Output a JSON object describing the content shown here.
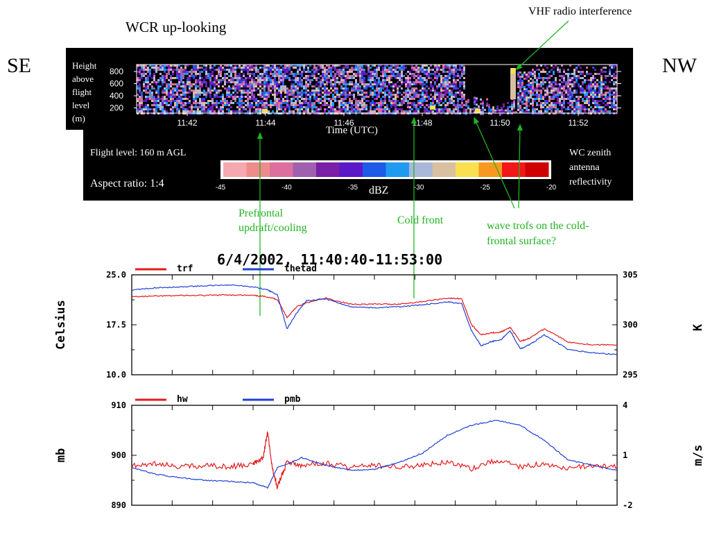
{
  "colors": {
    "trf": "#e31a1c",
    "thetad": "#1f3fd6",
    "hw": "#e31a1c",
    "pmb": "#1f3fd6",
    "annotation": "#22b322"
  },
  "radar": {
    "title": "WCR up-looking",
    "left_dir": "SE",
    "right_dir": "NW",
    "interference_label": "VHF radio interference",
    "height_label": [
      "Height",
      "above",
      "flight",
      "level",
      "(m)"
    ],
    "height_ticks": [
      "800",
      "600",
      "400",
      "200"
    ],
    "time_ticks": [
      "11:42",
      "11:44",
      "11:46",
      "11:48",
      "11:50",
      "11:52"
    ],
    "time_axis_label": "Time (UTC)",
    "flight_level": "Flight level: 160 m AGL",
    "aspect_ratio": "Aspect ratio: 1:4",
    "reflectivity_label": [
      "WC zenith",
      "antenna",
      "reflectivity"
    ],
    "colorbar_unit": "dBZ",
    "colorbar_ticks": [
      "-45",
      "-40",
      "-35",
      "-30",
      "-25",
      "-20"
    ],
    "colorbar_colors": [
      "#f6a8b0",
      "#ee8c8c",
      "#dd6e9e",
      "#a060b0",
      "#7a1fa8",
      "#5a18c8",
      "#1e5ae8",
      "#1f9af0",
      "#a8b8d8",
      "#d8c0a0",
      "#f8e050",
      "#f89820",
      "#f01818",
      "#d00000"
    ]
  },
  "annotations": {
    "prefrontal": [
      "Prefrontal",
      "updraft/cooling"
    ],
    "cold_front": "Cold front",
    "wave_trofs": [
      "wave trofs on the cold-",
      "frontal surface?"
    ]
  },
  "plot_title": "6/4/2002, 11:40:40-11:53:00",
  "chart_data": [
    {
      "type": "line",
      "ylabel": "Celsius",
      "y2label": "K",
      "ylim": [
        10.0,
        25.0
      ],
      "y2lim": [
        295,
        305
      ],
      "yticks": [
        "25.0",
        "17.5",
        "10.0"
      ],
      "y2ticks": [
        "305",
        "300",
        "295"
      ],
      "x_range_utc": [
        "11:40:40",
        "11:53:00"
      ],
      "series": [
        {
          "name": "trf",
          "axis": "left",
          "x": [
            0,
            0.05,
            0.1,
            0.15,
            0.2,
            0.25,
            0.28,
            0.3,
            0.32,
            0.34,
            0.36,
            0.4,
            0.45,
            0.5,
            0.55,
            0.6,
            0.65,
            0.68,
            0.7,
            0.72,
            0.74,
            0.76,
            0.78,
            0.8,
            0.82,
            0.85,
            0.9,
            0.95,
            1.0
          ],
          "y": [
            21.7,
            21.8,
            21.9,
            21.9,
            22.0,
            21.9,
            21.7,
            21.3,
            18.6,
            20.2,
            20.8,
            21.5,
            20.6,
            20.6,
            20.6,
            21.0,
            21.5,
            21.4,
            17.5,
            16.0,
            16.3,
            16.4,
            17.1,
            15.0,
            15.5,
            16.9,
            14.9,
            14.5,
            14.5
          ]
        },
        {
          "name": "thetad",
          "axis": "right",
          "x": [
            0,
            0.05,
            0.1,
            0.15,
            0.2,
            0.25,
            0.28,
            0.3,
            0.32,
            0.34,
            0.36,
            0.4,
            0.45,
            0.5,
            0.55,
            0.6,
            0.65,
            0.68,
            0.7,
            0.72,
            0.74,
            0.76,
            0.78,
            0.8,
            0.82,
            0.85,
            0.9,
            0.95,
            1.0
          ],
          "y": [
            303.5,
            303.7,
            303.8,
            303.9,
            304.0,
            303.8,
            303.5,
            303.0,
            299.6,
            301.2,
            302.4,
            302.6,
            301.8,
            301.7,
            301.8,
            302.0,
            302.3,
            302.1,
            299.4,
            297.9,
            298.3,
            298.5,
            299.4,
            297.6,
            298.0,
            299.0,
            297.5,
            297.2,
            297.0
          ]
        }
      ]
    },
    {
      "type": "line",
      "ylabel": "mb",
      "y2label": "m/s",
      "ylim": [
        890,
        910
      ],
      "y2lim": [
        -2,
        4
      ],
      "yticks": [
        "910",
        "900",
        "890"
      ],
      "y2ticks": [
        "4",
        "1",
        "-2"
      ],
      "x_range_utc": [
        "11:40:40",
        "11:53:00"
      ],
      "series": [
        {
          "name": "hw",
          "axis": "right",
          "x": [
            0,
            0.05,
            0.1,
            0.15,
            0.2,
            0.25,
            0.27,
            0.28,
            0.29,
            0.3,
            0.32,
            0.35,
            0.4,
            0.45,
            0.5,
            0.55,
            0.6,
            0.65,
            0.7,
            0.75,
            0.8,
            0.85,
            0.9,
            0.95,
            1.0
          ],
          "y": [
            0.4,
            0.5,
            0.3,
            0.4,
            0.3,
            0.5,
            0.8,
            2.4,
            0.2,
            -0.9,
            0.6,
            0.4,
            0.5,
            0.3,
            0.4,
            0.3,
            0.4,
            0.6,
            0.2,
            0.7,
            0.3,
            0.5,
            0.2,
            0.4,
            0.3
          ]
        },
        {
          "name": "pmb",
          "axis": "left",
          "x": [
            0,
            0.05,
            0.1,
            0.15,
            0.2,
            0.25,
            0.28,
            0.3,
            0.35,
            0.4,
            0.45,
            0.5,
            0.55,
            0.6,
            0.65,
            0.7,
            0.75,
            0.8,
            0.85,
            0.9,
            0.95,
            1.0
          ],
          "y": [
            897.5,
            896.2,
            895.5,
            895.0,
            894.8,
            894.5,
            893.5,
            897.5,
            899.5,
            898.0,
            897.0,
            897.2,
            898.5,
            900.5,
            904.0,
            906.0,
            907.0,
            906.0,
            903.0,
            899.0,
            898.0,
            897.0
          ]
        }
      ]
    }
  ]
}
